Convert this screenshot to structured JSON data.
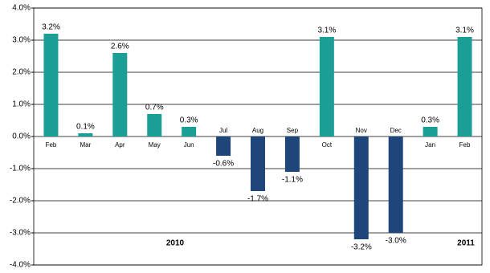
{
  "chart_data": {
    "type": "bar",
    "categories": [
      "Feb",
      "Mar",
      "Apr",
      "May",
      "Jun",
      "Jul",
      "Aug",
      "Sep",
      "Oct",
      "Nov",
      "Dec",
      "Jan",
      "Feb"
    ],
    "values": [
      3.2,
      0.1,
      2.6,
      0.7,
      0.3,
      -0.6,
      -1.7,
      -1.1,
      3.1,
      -3.2,
      -3.0,
      0.3,
      3.1
    ],
    "value_labels": [
      "3.2%",
      "0.1%",
      "2.6%",
      "0.7%",
      "0.3%",
      "-0.6%",
      "-1.7%",
      "-1.1%",
      "3.1%",
      "-3.2%",
      "-3.0%",
      "0.3%",
      "3.1%"
    ],
    "color_positive": "#1a9e96",
    "color_negative": "#1f467a",
    "ylim": [
      -4,
      4
    ],
    "yticks": [
      {
        "value": -4,
        "label": "-4.0%"
      },
      {
        "value": -3,
        "label": "-3.0%"
      },
      {
        "value": -2,
        "label": "-2.0%"
      },
      {
        "value": -1,
        "label": "-1.0%"
      },
      {
        "value": 0,
        "label": "0.0%"
      },
      {
        "value": 1,
        "label": "1.0%"
      },
      {
        "value": 2,
        "label": "2.0%"
      },
      {
        "value": 3,
        "label": "3.0%"
      },
      {
        "value": 4,
        "label": "4.0%"
      }
    ],
    "grid": true,
    "annotations": [
      "2010",
      "2011"
    ]
  }
}
